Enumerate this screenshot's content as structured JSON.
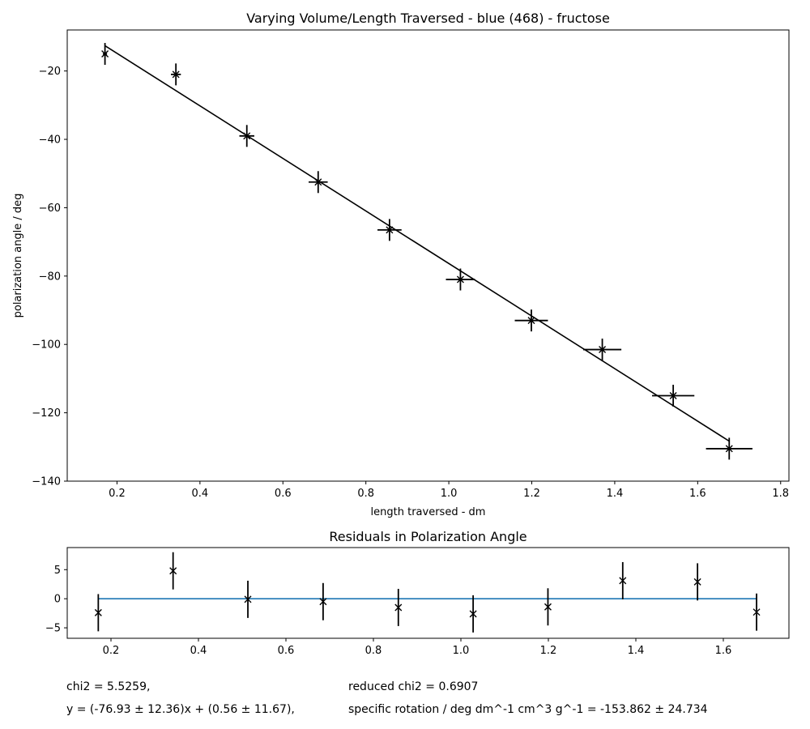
{
  "chart_data": [
    {
      "type": "scatter",
      "title": "Varying Volume/Length Traversed - blue (468) - fructose",
      "xlabel": "length traversed - dm",
      "ylabel": "polarization angle / deg",
      "xlim": [
        0.08,
        1.82
      ],
      "ylim": [
        -140,
        -8
      ],
      "xticks": [
        0.2,
        0.4,
        0.6,
        0.8,
        1.0,
        1.2,
        1.4,
        1.6,
        1.8
      ],
      "xtick_labels": [
        "0.2",
        "0.4",
        "0.6",
        "0.8",
        "1.0",
        "1.2",
        "1.4",
        "1.6",
        "1.8"
      ],
      "yticks": [
        -20,
        -40,
        -60,
        -80,
        -100,
        -120,
        -140
      ],
      "ytick_labels": [
        "−20",
        "−40",
        "−60",
        "−80",
        "−100",
        "−120",
        "−140"
      ],
      "grid": false,
      "marker_color": "#000000",
      "fit_color": "#000000",
      "series": [
        {
          "x": [
            0.171,
            0.342,
            0.513,
            0.685,
            0.857,
            1.028,
            1.199,
            1.37,
            1.541,
            1.676
          ],
          "y": [
            -15.0,
            -21.0,
            -39.0,
            -52.5,
            -66.5,
            -81.0,
            -93.0,
            -101.5,
            -115.0,
            -130.5
          ],
          "xerr": [
            0.005,
            0.012,
            0.018,
            0.023,
            0.029,
            0.035,
            0.04,
            0.046,
            0.051,
            0.056
          ],
          "yerr": [
            3.2,
            3.2,
            3.2,
            3.2,
            3.2,
            3.2,
            3.2,
            3.2,
            3.2,
            3.2
          ]
        }
      ],
      "fit": {
        "x": [
          0.171,
          1.676
        ],
        "y": [
          -12.6,
          -128.3
        ]
      }
    },
    {
      "type": "scatter",
      "title": "Residuals in Polarization Angle",
      "xlabel": "",
      "ylabel": "",
      "xlim": [
        0.1,
        1.75
      ],
      "ylim": [
        -6.8,
        8.8
      ],
      "xticks": [
        0.2,
        0.4,
        0.6,
        0.8,
        1.0,
        1.2,
        1.4,
        1.6
      ],
      "xtick_labels": [
        "0.2",
        "0.4",
        "0.6",
        "0.8",
        "1.0",
        "1.2",
        "1.4",
        "1.6"
      ],
      "yticks": [
        5,
        0,
        -5
      ],
      "ytick_labels": [
        "5",
        "0",
        "−5"
      ],
      "grid": false,
      "marker_color": "#000000",
      "zero_line_color": "#1f77b4",
      "series": [
        {
          "x": [
            0.171,
            0.342,
            0.513,
            0.685,
            0.857,
            1.028,
            1.199,
            1.37,
            1.541,
            1.676
          ],
          "y": [
            -2.4,
            4.8,
            -0.1,
            -0.5,
            -1.5,
            -2.6,
            -1.4,
            3.1,
            2.9,
            -2.3
          ],
          "yerr": [
            3.2,
            3.2,
            3.2,
            3.2,
            3.2,
            3.2,
            3.2,
            3.2,
            3.2,
            3.2
          ]
        }
      ],
      "zero_line": {
        "x": [
          0.171,
          1.676
        ],
        "y": [
          0,
          0
        ]
      }
    }
  ],
  "stats": {
    "chi2": "chi2 = 5.5259,",
    "reduced_chi2": "reduced chi2 = 0.6907",
    "equation": "y = (-76.93 ± 12.36)x + (0.56 ± 11.67),",
    "specific_rotation": "specific rotation / deg dm^-1 cm^3 g^-1 = -153.862 ± 24.734"
  }
}
